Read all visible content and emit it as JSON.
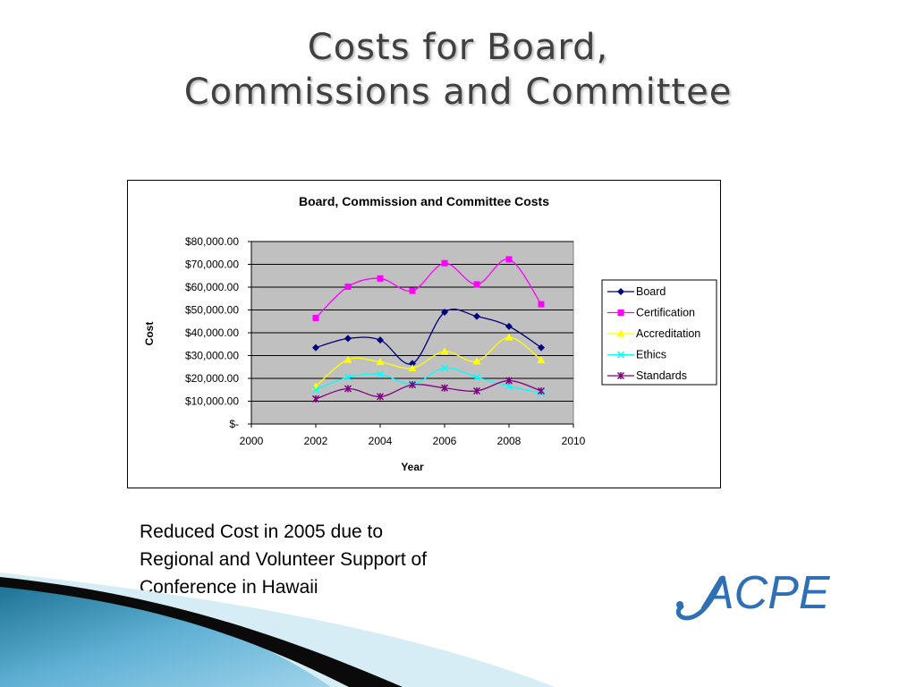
{
  "slide": {
    "title_line1": "Costs for Board,",
    "title_line2": "Commissions and Committee",
    "caption_line1": "Reduced Cost in 2005 due to",
    "caption_line2": "Regional and Volunteer Support of",
    "caption_line3": "Conference in Hawaii",
    "logo_text": "ACPE",
    "logo_color": "#2e6fb5"
  },
  "chart_data": {
    "type": "line",
    "title": "Board, Commission and Committee Costs",
    "xlabel": "Year",
    "ylabel": "Cost",
    "x": [
      2002,
      2003,
      2004,
      2005,
      2006,
      2007,
      2008,
      2009
    ],
    "xlim": [
      2000,
      2010
    ],
    "xticks": [
      "2000",
      "2002",
      "2004",
      "2006",
      "2008",
      "2010"
    ],
    "ylim": [
      0,
      80000
    ],
    "yticks": [
      "$-",
      "$10,000.00",
      "$20,000.00",
      "$30,000.00",
      "$40,000.00",
      "$50,000.00",
      "$60,000.00",
      "$70,000.00",
      "$80,000.00"
    ],
    "grid": true,
    "legend_position": "right",
    "plot_background": "#c0c0c0",
    "series": [
      {
        "name": "Board",
        "color": "#000080",
        "marker": "diamond",
        "values": [
          33500,
          37500,
          36800,
          26500,
          49000,
          47200,
          42800,
          33500
        ]
      },
      {
        "name": "Certification",
        "color": "#ff00ff",
        "marker": "square",
        "values": [
          46500,
          60200,
          63800,
          58400,
          70500,
          61200,
          72200,
          52500
        ]
      },
      {
        "name": "Accreditation",
        "color": "#ffff00",
        "marker": "triangle",
        "values": [
          16500,
          28200,
          27200,
          24500,
          31800,
          27500,
          38000,
          28000
        ]
      },
      {
        "name": "Ethics",
        "color": "#00ffff",
        "marker": "x",
        "values": [
          15000,
          20500,
          21800,
          17500,
          24500,
          20500,
          16500,
          13500
        ]
      },
      {
        "name": "Standards",
        "color": "#800080",
        "marker": "star",
        "values": [
          11000,
          15500,
          12000,
          17200,
          15800,
          14500,
          19000,
          14500
        ]
      }
    ]
  }
}
